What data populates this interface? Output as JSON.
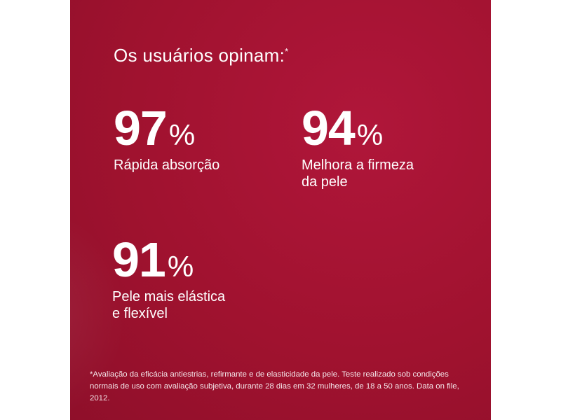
{
  "headline": {
    "text": "Os usuários opinam:",
    "marker": "*"
  },
  "stats": [
    {
      "value": "97",
      "unit": "%",
      "label_lines": [
        "Rápida absorção"
      ]
    },
    {
      "value": "94",
      "unit": "%",
      "label_lines": [
        "Melhora a firmeza",
        "da pele"
      ]
    },
    {
      "value": "91",
      "unit": "%",
      "label_lines": [
        "Pele mais elástica",
        "e flexível"
      ]
    }
  ],
  "footnote": "*Avaliação da eficácia antiestrias, refirmante e de elasticidade da pele. Teste realizado sob condições normais de uso com avaliação subjetiva, durante 28 dias em 32 mulheres, de 18 a 50 anos. Data on file, 2012.",
  "colors": {
    "background": "#a0122f",
    "text": "#ffffff"
  }
}
